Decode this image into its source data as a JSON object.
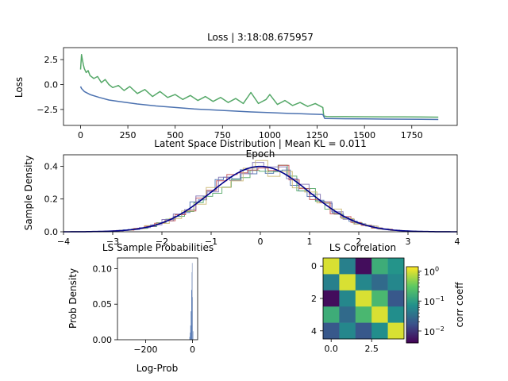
{
  "colors": {
    "train": "#4c72b0",
    "valid": "#55a868",
    "gaussian": "#00008b",
    "hist_dims": [
      "#4c72b0",
      "#55a868",
      "#c44e52",
      "#8172b3",
      "#ccb974"
    ]
  },
  "chart_data": [
    {
      "type": "line",
      "title": "Loss | 3:18:08.675957",
      "xlabel": "Epoch",
      "ylabel": "Loss",
      "xlim": [
        -90,
        1990
      ],
      "ylim": [
        -4.1,
        3.7
      ],
      "xticks": [
        "0",
        "250",
        "500",
        "750",
        "1000",
        "1250",
        "1500",
        "1750"
      ],
      "xtick_values": [
        0,
        250,
        500,
        750,
        1000,
        1250,
        1500,
        1750
      ],
      "yticks": [
        "2.5",
        "0.0",
        "−2.5"
      ],
      "ytick_values": [
        2.5,
        0.0,
        -2.5
      ],
      "series": [
        {
          "color": "#4c72b0",
          "x": [
            0,
            5,
            20,
            50,
            100,
            150,
            200,
            300,
            400,
            500,
            600,
            700,
            800,
            900,
            1000,
            1100,
            1200,
            1280,
            1290,
            1400,
            1500,
            1600,
            1700,
            1800,
            1890
          ],
          "y": [
            -0.2,
            -0.4,
            -0.7,
            -1.0,
            -1.3,
            -1.55,
            -1.7,
            -1.95,
            -2.15,
            -2.3,
            -2.45,
            -2.55,
            -2.65,
            -2.75,
            -2.82,
            -2.9,
            -2.95,
            -3.0,
            -3.4,
            -3.43,
            -3.45,
            -3.46,
            -3.47,
            -3.48,
            -3.5
          ]
        },
        {
          "color": "#55a868",
          "x": [
            0,
            5,
            10,
            15,
            20,
            30,
            40,
            50,
            70,
            90,
            110,
            130,
            150,
            170,
            200,
            230,
            260,
            300,
            340,
            380,
            420,
            460,
            500,
            540,
            580,
            620,
            660,
            700,
            740,
            780,
            820,
            860,
            900,
            940,
            980,
            1000,
            1040,
            1080,
            1120,
            1160,
            1200,
            1240,
            1280,
            1285,
            1300,
            1400,
            1500,
            1600,
            1700,
            1800,
            1890
          ],
          "y": [
            1.5,
            3.0,
            2.5,
            2.0,
            1.6,
            1.2,
            1.4,
            0.9,
            0.6,
            0.8,
            0.2,
            0.5,
            0.0,
            -0.3,
            -0.1,
            -0.6,
            -0.2,
            -0.9,
            -0.5,
            -1.2,
            -0.7,
            -1.3,
            -1.0,
            -1.5,
            -1.1,
            -1.6,
            -1.2,
            -1.7,
            -1.3,
            -1.8,
            -1.4,
            -1.9,
            -0.8,
            -1.9,
            -1.5,
            -1.0,
            -2.0,
            -1.6,
            -2.1,
            -1.8,
            -2.2,
            -1.9,
            -2.3,
            -3.15,
            -3.2,
            -3.22,
            -3.23,
            -3.24,
            -3.25,
            -3.26,
            -3.27
          ]
        }
      ]
    },
    {
      "type": "histogram",
      "title": "Latent Space Distribution | Mean KL = 0.011",
      "ylabel": "Sample Density",
      "xlim": [
        -4,
        4
      ],
      "ylim": [
        0,
        0.47
      ],
      "xticks": [
        "−4",
        "−3",
        "−2",
        "−1",
        "0",
        "1",
        "2",
        "3",
        "4"
      ],
      "xtick_values": [
        -4,
        -3,
        -2,
        -1,
        0,
        1,
        2,
        3,
        4
      ],
      "yticks": [
        "0.0",
        "0.2",
        "0.4"
      ],
      "ytick_values": [
        0.0,
        0.2,
        0.4
      ],
      "gaussian": {
        "mean": 0,
        "std": 1
      }
    },
    {
      "type": "histogram",
      "title": "LS Sample Probabilities",
      "xlabel": "Log-Prob",
      "ylabel": "Prob Density",
      "xlim": [
        -320,
        22
      ],
      "ylim": [
        0,
        0.115
      ],
      "xticks": [
        "−200",
        "0"
      ],
      "xtick_values": [
        -200,
        0
      ],
      "yticks": [
        "0.00",
        "0.05",
        "0.10"
      ],
      "ytick_values": [
        0.0,
        0.05,
        0.1
      ]
    },
    {
      "type": "heatmap",
      "title": "LS Correlation",
      "xticks": [
        "0.0",
        "2.5"
      ],
      "xtick_values": [
        0.0,
        2.5
      ],
      "yticks": [
        "0",
        "2",
        "4"
      ],
      "ytick_values": [
        0,
        2,
        4
      ],
      "colorbar_label": "corr coeff",
      "colorbar_ticks": [
        "10",
        "10",
        "10"
      ],
      "colorbar_tick_exponents": [
        "0",
        "−1",
        "−2"
      ],
      "colorbar_tick_values": [
        1,
        0.1,
        0.01
      ],
      "colorbar_range": [
        0.004,
        1.4
      ],
      "matrix": [
        [
          1.0,
          0.05,
          0.005,
          0.15,
          0.08
        ],
        [
          0.05,
          1.0,
          0.06,
          0.03,
          0.06
        ],
        [
          0.005,
          0.06,
          1.0,
          0.2,
          0.02
        ],
        [
          0.15,
          0.03,
          0.2,
          1.0,
          0.07
        ],
        [
          0.02,
          0.06,
          0.02,
          0.07,
          1.0
        ]
      ]
    }
  ]
}
